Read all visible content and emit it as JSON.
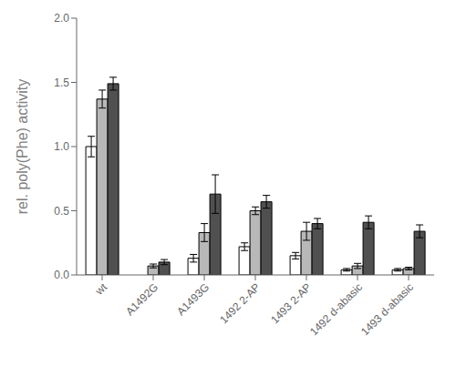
{
  "chart_data": {
    "type": "bar",
    "categories": [
      "wt",
      "A1492G",
      "A1493G",
      "1492 2-AP",
      "1493 2-AP",
      "1492 d-abasic",
      "1493 d-abasic"
    ],
    "series": [
      {
        "color": "#ffffff",
        "values": [
          1.0,
          0.0,
          0.13,
          0.22,
          0.15,
          0.04,
          0.04
        ],
        "errors": [
          0.08,
          0.005,
          0.03,
          0.03,
          0.025,
          0.01,
          0.01
        ]
      },
      {
        "color": "#b8b8b8",
        "values": [
          1.37,
          0.07,
          0.33,
          0.5,
          0.34,
          0.07,
          0.05
        ],
        "errors": [
          0.07,
          0.015,
          0.07,
          0.03,
          0.07,
          0.02,
          0.01
        ]
      },
      {
        "color": "#505050",
        "values": [
          1.49,
          0.1,
          0.63,
          0.57,
          0.4,
          0.41,
          0.34
        ],
        "errors": [
          0.05,
          0.02,
          0.15,
          0.05,
          0.04,
          0.05,
          0.05
        ]
      }
    ],
    "ylabel": "rel. poly(Phe) activity",
    "ylim": [
      0,
      2.0
    ],
    "yticks": [
      {
        "value": 0,
        "label": "0.0"
      },
      0.5,
      {
        "value": 1,
        "label": "1.0"
      },
      1.5,
      {
        "value": 2,
        "label": "2.0"
      }
    ],
    "grid": false
  }
}
